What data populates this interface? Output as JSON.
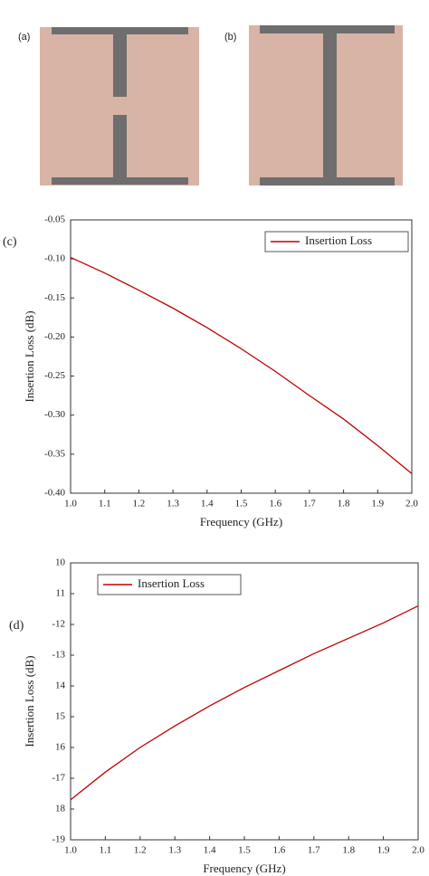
{
  "diagrams": [
    {
      "label": "(a)"
    },
    {
      "label": "(b)"
    }
  ],
  "chart_data": [
    {
      "type": "line",
      "label": "(c)",
      "xlabel": "Frequency (GHz)",
      "ylabel": "Insertion Loss (dB)",
      "x": [
        1.0,
        1.1,
        1.2,
        1.3,
        1.4,
        1.5,
        1.6,
        1.7,
        1.8,
        1.9,
        2.0
      ],
      "series": [
        {
          "name": "Insertion Loss",
          "color": "#c00000",
          "values": [
            -0.098,
            -0.118,
            -0.14,
            -0.163,
            -0.188,
            -0.215,
            -0.244,
            -0.275,
            -0.305,
            -0.339,
            -0.375
          ]
        }
      ],
      "xlim": [
        1.0,
        2.0
      ],
      "xticks": [
        {
          "value": 1,
          "label": "1.0"
        },
        1.1,
        1.2,
        1.3,
        1.4,
        1.5,
        1.6,
        1.7,
        1.8,
        1.9,
        {
          "value": 2,
          "label": "2.0"
        }
      ],
      "ylim": [
        -0.4,
        -0.05
      ],
      "yticks": [
        {
          "value": -0.4,
          "label": "-0.40"
        },
        -0.35,
        {
          "value": -0.3,
          "label": "-0.30"
        },
        -0.25,
        {
          "value": -0.2,
          "label": "-0.20"
        },
        -0.15,
        {
          "value": -0.1,
          "label": "-0.10"
        },
        -0.05
      ],
      "legend": "upper right"
    },
    {
      "type": "line",
      "label": "(d)",
      "xlabel": "Frequency (GHz)",
      "ylabel": "Insertion Loss (dB)",
      "x": [
        1.0,
        1.1,
        1.2,
        1.3,
        1.4,
        1.5,
        1.6,
        1.7,
        1.8,
        1.9,
        2.0
      ],
      "series": [
        {
          "name": "Insertion Loss",
          "color": "#c00000",
          "values": [
            -17.7,
            -16.8,
            -16.0,
            -15.3,
            -14.65,
            -14.05,
            -13.5,
            -12.95,
            -12.45,
            -11.95,
            -11.4
          ]
        }
      ],
      "xlim": [
        1.0,
        2.0
      ],
      "xticks": [
        {
          "value": 1,
          "label": "1.0"
        },
        1.1,
        1.2,
        1.3,
        1.4,
        1.5,
        1.6,
        1.7,
        1.8,
        1.9,
        {
          "value": 2,
          "label": "2.0"
        }
      ],
      "ylim": [
        -19,
        -10
      ],
      "yticks": [
        {
          "value": -19,
          "label": "-19"
        },
        {
          "value": -18,
          "label": "18"
        },
        {
          "value": -17,
          "label": "-17"
        },
        {
          "value": -16,
          "label": "16"
        },
        {
          "value": -15,
          "label": "15"
        },
        {
          "value": -14,
          "label": "14"
        },
        {
          "value": -13,
          "label": "-13"
        },
        {
          "value": -12,
          "label": "-12"
        },
        {
          "value": -11,
          "label": "11"
        },
        {
          "value": -10,
          "label": "10"
        }
      ],
      "legend": "upper left"
    }
  ]
}
